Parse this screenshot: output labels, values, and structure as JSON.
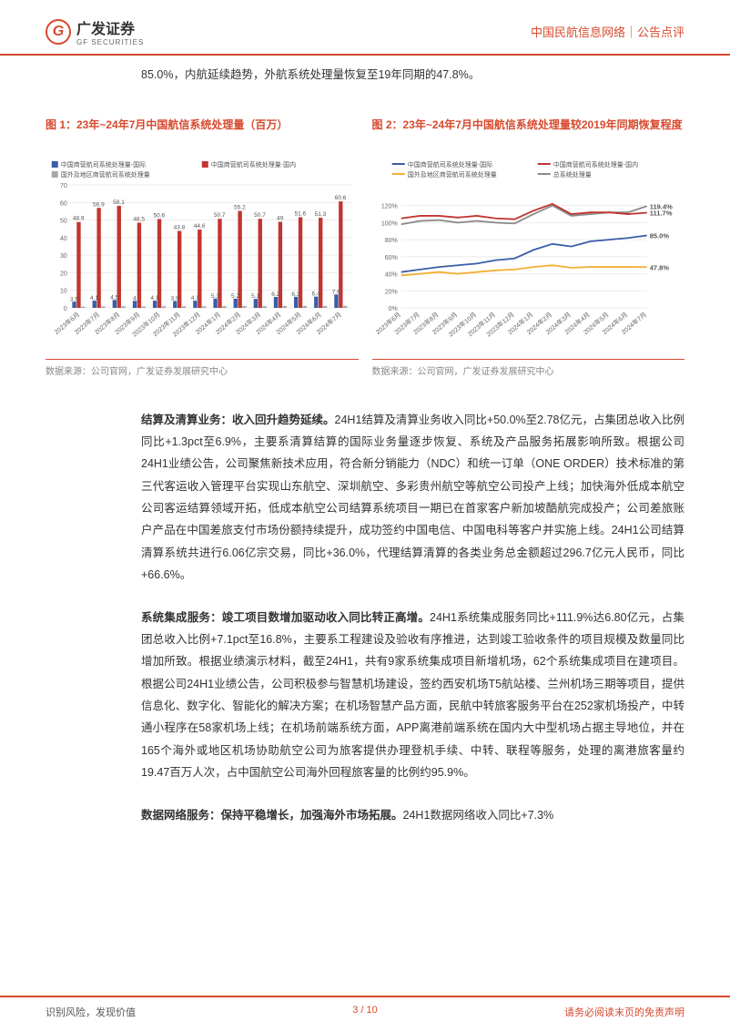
{
  "header": {
    "logo_cn": "广发证券",
    "logo_en": "GF SECURITIES",
    "right": "中国民航信息网络｜公告点评"
  },
  "intro": "85.0%，内航延续趋势，外航系统处理量恢复至19年同期的47.8%。",
  "chart1": {
    "title": "图 1：23年~24年7月中国航信系统处理量（百万）",
    "type": "bar",
    "legend": [
      "中国商营航司系统处理量-国际",
      "中国商营航司系统处理量-国内",
      "国外及地区商营航司系统处理量"
    ],
    "legend_colors": [
      "#3a5da8",
      "#c23530",
      "#a8a8a8"
    ],
    "categories": [
      "2023年6月",
      "2023年7月",
      "2023年8月",
      "2023年9月",
      "2023年10月",
      "2023年11月",
      "2023年12月",
      "2024年1月",
      "2024年2月",
      "2024年3月",
      "2024年4月",
      "2024年5月",
      "2024年6月",
      "2024年7月"
    ],
    "intl": [
      3.5,
      4.1,
      4.5,
      4.0,
      4.1,
      3.9,
      4.1,
      5.3,
      5.2,
      5.1,
      6.2,
      6.3,
      6.4,
      7.6
    ],
    "dom": [
      48.9,
      56.9,
      58.1,
      48.5,
      50.6,
      43.8,
      44.6,
      50.7,
      55.2,
      50.7,
      49.0,
      51.6,
      51.3,
      60.6
    ],
    "foreign": [
      0.7,
      0.8,
      0.9,
      0.8,
      0.9,
      0.9,
      0.9,
      1.0,
      1.0,
      1.0,
      1.1,
      1.1,
      1.1,
      1.1
    ],
    "ylim": [
      0,
      70
    ],
    "ytick_step": 10,
    "grid_color": "#e5e5e5",
    "background": "#ffffff"
  },
  "chart2": {
    "title": "图 2：23年~24年7月中国航信系统处理量较2019年同期恢复程度",
    "type": "line",
    "legend": [
      "中国商营航司系统处理量-国际",
      "中国商营航司系统处理量-国内",
      "国外及地区商营航司系统处理量",
      "总系统处理量"
    ],
    "legend_colors": [
      "#3a5da8",
      "#c23530",
      "#f2b035",
      "#8b8b8b"
    ],
    "categories": [
      "2023年6月",
      "2023年7月",
      "2023年8月",
      "2023年9月",
      "2023年10月",
      "2023年11月",
      "2023年12月",
      "2024年1月",
      "2024年2月",
      "2024年3月",
      "2024年4月",
      "2024年5月",
      "2024年6月",
      "2024年7月"
    ],
    "s_intl": [
      42,
      45,
      48,
      50,
      52,
      56,
      58,
      68,
      75,
      72,
      78,
      80,
      82,
      85.0
    ],
    "s_dom": [
      105,
      108,
      108,
      106,
      108,
      105,
      104,
      114,
      122,
      110,
      112,
      112,
      110,
      111.7
    ],
    "s_foreign": [
      38,
      40,
      42,
      40,
      42,
      44,
      45,
      48,
      50,
      47,
      48,
      48,
      48,
      47.8
    ],
    "s_total": [
      98,
      102,
      103,
      100,
      102,
      100,
      99,
      110,
      120,
      108,
      110,
      112,
      112,
      119.4
    ],
    "end_labels": {
      "total": "119.4%",
      "dom": "111.7%",
      "intl": "85.0%",
      "foreign": "47.8%"
    },
    "ylim": [
      0,
      140
    ],
    "yticks": [
      0,
      20,
      40,
      60,
      80,
      100,
      120
    ],
    "grid_color": "#e5e5e5",
    "background": "#ffffff"
  },
  "source": "数据来源：公司官网，广发证券发展研究中心",
  "para1_head": "结算及清算业务：收入回升趋势延续。",
  "para1_body": "24H1结算及清算业务收入同比+50.0%至2.78亿元，占集团总收入比例同比+1.3pct至6.9%，主要系清算结算的国际业务量逐步恢复、系统及产品服务拓展影响所致。根据公司24H1业绩公告，公司聚焦新技术应用，符合新分销能力（NDC）和统一订单（ONE ORDER）技术标准的第三代客运收入管理平台实现山东航空、深圳航空、多彩贵州航空等航空公司投产上线；加快海外低成本航空公司客运结算领域开拓，低成本航空公司结算系统项目一期已在首家客户新加坡酷航完成投产；公司差旅账户产品在中国差旅支付市场份额持续提升，成功签约中国电信、中国电科等客户并实施上线。24H1公司结算清算系统共进行6.06亿宗交易，同比+36.0%，代理结算清算的各类业务总金额超过296.7亿元人民币，同比+66.6%。",
  "para2_head": "系统集成服务：竣工项目数增加驱动收入同比转正高增。",
  "para2_body": "24H1系统集成服务同比+111.9%达6.80亿元，占集团总收入比例+7.1pct至16.8%，主要系工程建设及验收有序推进，达到竣工验收条件的项目规模及数量同比增加所致。根据业绩演示材料，截至24H1，共有9家系统集成项目新增机场，62个系统集成项目在建项目。根据公司24H1业绩公告，公司积极参与智慧机场建设，签约西安机场T5航站楼、兰州机场三期等项目，提供信息化、数字化、智能化的解决方案；在机场智慧产品方面，民航中转旅客服务平台在252家机场投产，中转通小程序在58家机场上线；在机场前端系统方面，APP离港前端系统在国内大中型机场占据主导地位，并在165个海外或地区机场协助航空公司为旅客提供办理登机手续、中转、联程等服务，处理的离港旅客量约19.47百万人次，占中国航空公司海外回程旅客量的比例约95.9%。",
  "para3_head": "数据网络服务：保持平稳增长，加强海外市场拓展。",
  "para3_body": "24H1数据网络收入同比+7.3%",
  "footer": {
    "left": "识别风险，发现价值",
    "page": "3 / 10",
    "right": "请务必阅读末页的免责声明"
  }
}
